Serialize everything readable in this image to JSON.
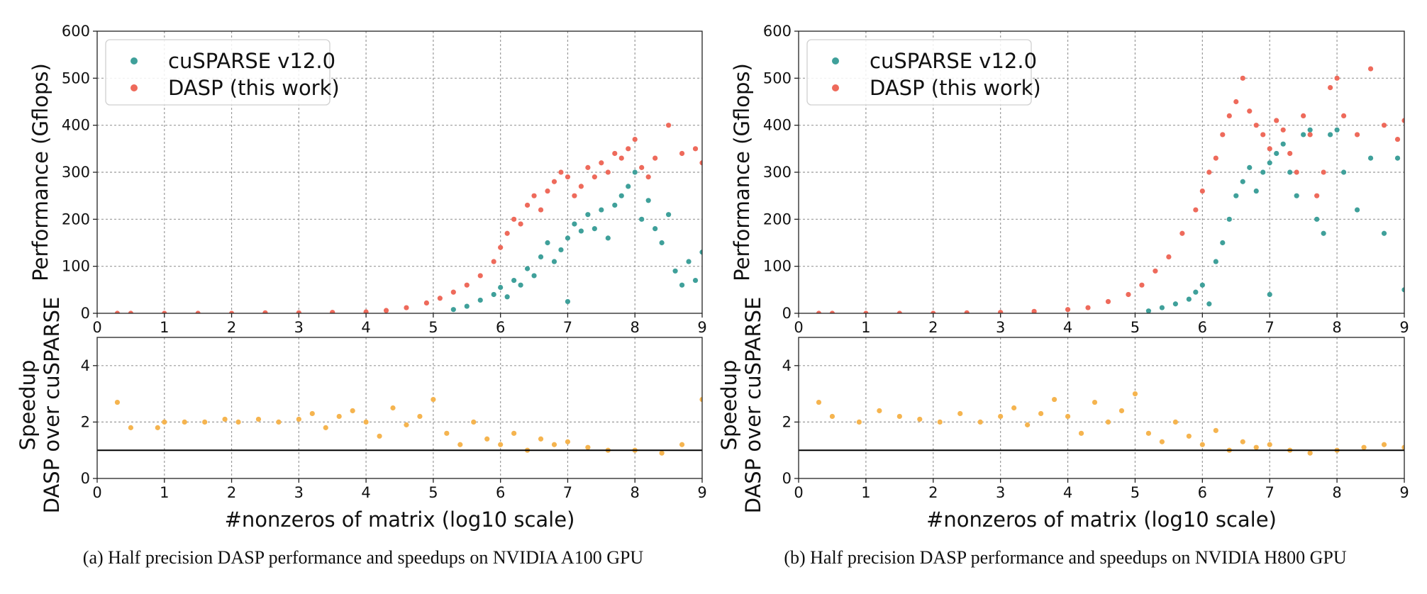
{
  "figure": {
    "panels": [
      {
        "caption": "(a)  Half precision DASP performance and speedups on NVIDIA A100 GPU",
        "gpu": "A100"
      },
      {
        "caption": "(b)  Half precision DASP performance and speedups on NVIDIA H800 GPU",
        "gpu": "H800"
      }
    ],
    "colors": {
      "cusparse": "#3fa09a",
      "dasp": "#ee6a5b",
      "speedup": "#f5b44f",
      "baseline": "#000000"
    }
  },
  "chart_data": [
    {
      "type": "scatter",
      "panel": "a-top",
      "ylabel": "Performance (Gflops)",
      "xlabel": "",
      "xlim": [
        0,
        9
      ],
      "ylim": [
        0,
        600
      ],
      "x_ticks": [
        "0",
        "1",
        "2",
        "3",
        "4",
        "5",
        "6",
        "7",
        "8",
        "9"
      ],
      "y_ticks": [
        "0",
        "100",
        "200",
        "300",
        "400",
        "500",
        "600"
      ],
      "grid": true,
      "legend": "top-left",
      "series": [
        {
          "name": "cuSPARSE v12.0",
          "color": "#3fa09a",
          "points": [
            [
              5.3,
              8
            ],
            [
              5.5,
              15
            ],
            [
              5.7,
              28
            ],
            [
              5.9,
              40
            ],
            [
              6.0,
              55
            ],
            [
              6.1,
              35
            ],
            [
              6.2,
              70
            ],
            [
              6.3,
              60
            ],
            [
              6.4,
              95
            ],
            [
              6.5,
              80
            ],
            [
              6.6,
              120
            ],
            [
              6.7,
              150
            ],
            [
              6.8,
              110
            ],
            [
              6.9,
              135
            ],
            [
              7.0,
              160
            ],
            [
              7.0,
              25
            ],
            [
              7.1,
              190
            ],
            [
              7.2,
              175
            ],
            [
              7.3,
              210
            ],
            [
              7.4,
              180
            ],
            [
              7.5,
              220
            ],
            [
              7.6,
              160
            ],
            [
              7.7,
              230
            ],
            [
              7.8,
              250
            ],
            [
              7.9,
              270
            ],
            [
              8.0,
              300
            ],
            [
              8.1,
              200
            ],
            [
              8.2,
              240
            ],
            [
              8.3,
              180
            ],
            [
              8.4,
              150
            ],
            [
              8.5,
              210
            ],
            [
              8.6,
              90
            ],
            [
              8.7,
              60
            ],
            [
              8.8,
              110
            ],
            [
              8.9,
              70
            ],
            [
              9.0,
              130
            ]
          ]
        },
        {
          "name": "DASP (this work)",
          "color": "#ee6a5b",
          "points": [
            [
              0.3,
              0
            ],
            [
              0.5,
              0
            ],
            [
              1.0,
              0
            ],
            [
              1.5,
              0
            ],
            [
              2.0,
              0
            ],
            [
              2.5,
              1
            ],
            [
              3.0,
              1
            ],
            [
              3.5,
              2
            ],
            [
              4.0,
              3
            ],
            [
              4.3,
              6
            ],
            [
              4.6,
              12
            ],
            [
              4.9,
              22
            ],
            [
              5.1,
              32
            ],
            [
              5.3,
              45
            ],
            [
              5.5,
              60
            ],
            [
              5.7,
              80
            ],
            [
              5.9,
              110
            ],
            [
              6.0,
              140
            ],
            [
              6.1,
              170
            ],
            [
              6.2,
              200
            ],
            [
              6.3,
              190
            ],
            [
              6.4,
              230
            ],
            [
              6.5,
              250
            ],
            [
              6.6,
              220
            ],
            [
              6.7,
              260
            ],
            [
              6.8,
              280
            ],
            [
              6.9,
              300
            ],
            [
              7.0,
              290
            ],
            [
              7.1,
              250
            ],
            [
              7.2,
              270
            ],
            [
              7.3,
              310
            ],
            [
              7.4,
              290
            ],
            [
              7.5,
              320
            ],
            [
              7.6,
              300
            ],
            [
              7.7,
              340
            ],
            [
              7.8,
              330
            ],
            [
              7.9,
              350
            ],
            [
              8.0,
              370
            ],
            [
              8.1,
              310
            ],
            [
              8.2,
              290
            ],
            [
              8.3,
              330
            ],
            [
              8.5,
              400
            ],
            [
              8.7,
              340
            ],
            [
              8.9,
              350
            ],
            [
              9.0,
              320
            ]
          ]
        }
      ]
    },
    {
      "type": "scatter",
      "panel": "a-bottom",
      "ylabel": "Speedup DASP over cuSPARSE",
      "xlabel": "#nonzeros of matrix (log10 scale)",
      "xlim": [
        0,
        9
      ],
      "ylim": [
        0,
        5
      ],
      "x_ticks": [
        "0",
        "1",
        "2",
        "3",
        "4",
        "5",
        "6",
        "7",
        "8",
        "9"
      ],
      "y_ticks": [
        "0",
        "2",
        "4"
      ],
      "baseline": 1,
      "grid": true,
      "series": [
        {
          "name": "",
          "color": "#f5b44f",
          "points": [
            [
              0.3,
              2.7
            ],
            [
              0.5,
              1.8
            ],
            [
              0.9,
              1.8
            ],
            [
              1.0,
              2.0
            ],
            [
              1.3,
              2.0
            ],
            [
              1.6,
              2.0
            ],
            [
              1.9,
              2.1
            ],
            [
              2.1,
              2.0
            ],
            [
              2.4,
              2.1
            ],
            [
              2.7,
              2.0
            ],
            [
              3.0,
              2.1
            ],
            [
              3.2,
              2.3
            ],
            [
              3.4,
              1.8
            ],
            [
              3.6,
              2.2
            ],
            [
              3.8,
              2.4
            ],
            [
              4.0,
              2.0
            ],
            [
              4.2,
              1.5
            ],
            [
              4.4,
              2.5
            ],
            [
              4.6,
              1.9
            ],
            [
              4.8,
              2.2
            ],
            [
              5.0,
              2.8
            ],
            [
              5.2,
              1.6
            ],
            [
              5.4,
              1.2
            ],
            [
              5.6,
              2.0
            ],
            [
              5.8,
              1.4
            ],
            [
              6.0,
              1.2
            ],
            [
              6.2,
              1.6
            ],
            [
              6.4,
              1.0
            ],
            [
              6.6,
              1.4
            ],
            [
              6.8,
              1.2
            ],
            [
              7.0,
              1.3
            ],
            [
              7.3,
              1.1
            ],
            [
              7.6,
              1.0
            ],
            [
              8.0,
              1.0
            ],
            [
              8.4,
              0.9
            ],
            [
              8.7,
              1.2
            ],
            [
              9.0,
              2.8
            ]
          ]
        }
      ]
    },
    {
      "type": "scatter",
      "panel": "b-top",
      "ylabel": "Performance (Gflops)",
      "xlabel": "",
      "xlim": [
        0,
        9
      ],
      "ylim": [
        0,
        600
      ],
      "x_ticks": [
        "0",
        "1",
        "2",
        "3",
        "4",
        "5",
        "6",
        "7",
        "8",
        "9"
      ],
      "y_ticks": [
        "0",
        "100",
        "200",
        "300",
        "400",
        "500",
        "600"
      ],
      "grid": true,
      "legend": "top-left",
      "series": [
        {
          "name": "cuSPARSE v12.0",
          "color": "#3fa09a",
          "points": [
            [
              5.2,
              5
            ],
            [
              5.4,
              12
            ],
            [
              5.6,
              20
            ],
            [
              5.8,
              30
            ],
            [
              5.9,
              45
            ],
            [
              6.0,
              60
            ],
            [
              6.1,
              20
            ],
            [
              6.2,
              110
            ],
            [
              6.3,
              150
            ],
            [
              6.4,
              200
            ],
            [
              6.5,
              250
            ],
            [
              6.6,
              280
            ],
            [
              6.7,
              310
            ],
            [
              6.8,
              260
            ],
            [
              6.9,
              300
            ],
            [
              7.0,
              320
            ],
            [
              7.0,
              40
            ],
            [
              7.1,
              340
            ],
            [
              7.2,
              360
            ],
            [
              7.3,
              300
            ],
            [
              7.4,
              250
            ],
            [
              7.5,
              380
            ],
            [
              7.6,
              390
            ],
            [
              7.7,
              200
            ],
            [
              7.8,
              170
            ],
            [
              7.9,
              380
            ],
            [
              8.0,
              390
            ],
            [
              8.1,
              300
            ],
            [
              8.3,
              220
            ],
            [
              8.5,
              330
            ],
            [
              8.7,
              170
            ],
            [
              8.9,
              330
            ],
            [
              9.0,
              50
            ]
          ]
        },
        {
          "name": "DASP (this work)",
          "color": "#ee6a5b",
          "points": [
            [
              0.3,
              0
            ],
            [
              0.5,
              0
            ],
            [
              1.0,
              0
            ],
            [
              1.5,
              0
            ],
            [
              2.0,
              0
            ],
            [
              2.5,
              1
            ],
            [
              3.0,
              2
            ],
            [
              3.5,
              4
            ],
            [
              4.0,
              8
            ],
            [
              4.3,
              12
            ],
            [
              4.6,
              25
            ],
            [
              4.9,
              40
            ],
            [
              5.1,
              60
            ],
            [
              5.3,
              90
            ],
            [
              5.5,
              120
            ],
            [
              5.7,
              170
            ],
            [
              5.9,
              220
            ],
            [
              6.0,
              260
            ],
            [
              6.1,
              300
            ],
            [
              6.2,
              330
            ],
            [
              6.3,
              380
            ],
            [
              6.4,
              420
            ],
            [
              6.5,
              450
            ],
            [
              6.6,
              500
            ],
            [
              6.7,
              430
            ],
            [
              6.8,
              400
            ],
            [
              6.9,
              380
            ],
            [
              7.0,
              350
            ],
            [
              7.1,
              410
            ],
            [
              7.2,
              390
            ],
            [
              7.3,
              340
            ],
            [
              7.4,
              300
            ],
            [
              7.5,
              420
            ],
            [
              7.6,
              380
            ],
            [
              7.7,
              250
            ],
            [
              7.8,
              300
            ],
            [
              7.9,
              480
            ],
            [
              8.0,
              500
            ],
            [
              8.1,
              420
            ],
            [
              8.3,
              380
            ],
            [
              8.5,
              520
            ],
            [
              8.7,
              400
            ],
            [
              8.9,
              370
            ],
            [
              9.0,
              410
            ]
          ]
        }
      ]
    },
    {
      "type": "scatter",
      "panel": "b-bottom",
      "ylabel": "Speedup DASP over cuSPARSE",
      "xlabel": "#nonzeros of matrix (log10 scale)",
      "xlim": [
        0,
        9
      ],
      "ylim": [
        0,
        5
      ],
      "x_ticks": [
        "0",
        "1",
        "2",
        "3",
        "4",
        "5",
        "6",
        "7",
        "8",
        "9"
      ],
      "y_ticks": [
        "0",
        "2",
        "4"
      ],
      "baseline": 1,
      "grid": true,
      "series": [
        {
          "name": "",
          "color": "#f5b44f",
          "points": [
            [
              0.3,
              2.7
            ],
            [
              0.5,
              2.2
            ],
            [
              0.9,
              2.0
            ],
            [
              1.2,
              2.4
            ],
            [
              1.5,
              2.2
            ],
            [
              1.8,
              2.1
            ],
            [
              2.1,
              2.0
            ],
            [
              2.4,
              2.3
            ],
            [
              2.7,
              2.0
            ],
            [
              3.0,
              2.2
            ],
            [
              3.2,
              2.5
            ],
            [
              3.4,
              1.9
            ],
            [
              3.6,
              2.3
            ],
            [
              3.8,
              2.8
            ],
            [
              4.0,
              2.2
            ],
            [
              4.2,
              1.6
            ],
            [
              4.4,
              2.7
            ],
            [
              4.6,
              2.0
            ],
            [
              4.8,
              2.4
            ],
            [
              5.0,
              3.0
            ],
            [
              5.2,
              1.6
            ],
            [
              5.4,
              1.3
            ],
            [
              5.6,
              2.0
            ],
            [
              5.8,
              1.5
            ],
            [
              6.0,
              1.2
            ],
            [
              6.2,
              1.7
            ],
            [
              6.4,
              1.0
            ],
            [
              6.6,
              1.3
            ],
            [
              6.8,
              1.1
            ],
            [
              7.0,
              1.2
            ],
            [
              7.3,
              1.0
            ],
            [
              7.6,
              0.9
            ],
            [
              8.0,
              1.0
            ],
            [
              8.4,
              1.1
            ],
            [
              8.7,
              1.2
            ],
            [
              9.0,
              1.1
            ]
          ]
        }
      ]
    }
  ]
}
